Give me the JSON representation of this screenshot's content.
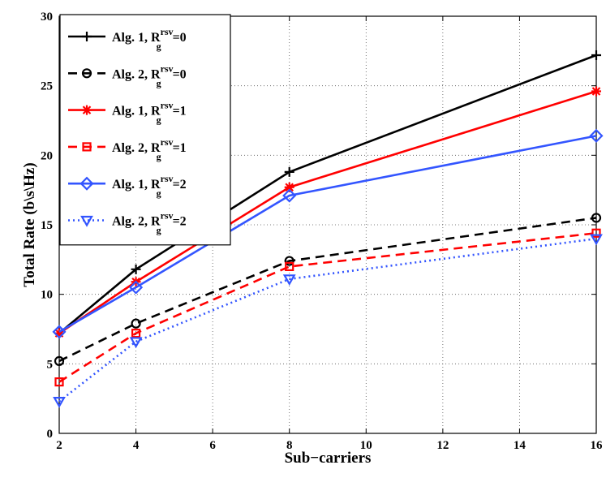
{
  "chart_data": {
    "type": "line",
    "title": "",
    "xlabel": "Sub−carriers",
    "ylabel": "Total Rate (b\\s\\Hz)",
    "xlim": [
      2,
      16
    ],
    "ylim": [
      0,
      30
    ],
    "xticks": [
      2,
      4,
      6,
      8,
      10,
      12,
      14,
      16
    ],
    "yticks": [
      0,
      5,
      10,
      15,
      20,
      25,
      30
    ],
    "xtick_labels": [
      "2",
      "4",
      "6",
      "8",
      "10",
      "12",
      "14",
      "16"
    ],
    "ytick_labels": [
      "0",
      "5",
      "10",
      "15",
      "20",
      "25",
      "30"
    ],
    "grid": true,
    "legend_position": "top-left",
    "x": [
      2,
      4,
      8,
      16
    ],
    "series": [
      {
        "name": "Alg. 1, R_g^rsv=0",
        "alg": "Alg. 1, R",
        "sub": "g",
        "sup": "rsv",
        "val": "=0",
        "color": "#000000",
        "dash": "solid",
        "marker": "plus",
        "values": [
          7.2,
          11.8,
          18.8,
          27.2
        ]
      },
      {
        "name": "Alg. 2, R_g^rsv=0",
        "alg": "Alg. 2, R",
        "sub": "g",
        "sup": "rsv",
        "val": "=0",
        "color": "#000000",
        "dash": "dashed",
        "marker": "circle",
        "values": [
          5.2,
          7.9,
          12.4,
          15.5
        ]
      },
      {
        "name": "Alg. 1, R_g^rsv=1",
        "alg": "Alg. 1, R",
        "sub": "g",
        "sup": "rsv",
        "val": "=1",
        "color": "#ff0000",
        "dash": "solid",
        "marker": "asterisk",
        "values": [
          7.2,
          10.9,
          17.7,
          24.6
        ]
      },
      {
        "name": "Alg. 2, R_g^rsv=1",
        "alg": "Alg. 2, R",
        "sub": "g",
        "sup": "rsv",
        "val": "=1",
        "color": "#ff0000",
        "dash": "dashed",
        "marker": "square",
        "values": [
          3.7,
          7.2,
          12.0,
          14.4
        ]
      },
      {
        "name": "Alg. 1, R_g^rsv=2",
        "alg": "Alg. 1, R",
        "sub": "g",
        "sup": "rsv",
        "val": "=2",
        "color": "#3355ff",
        "dash": "solid",
        "marker": "diamond",
        "values": [
          7.3,
          10.5,
          17.1,
          21.4
        ]
      },
      {
        "name": "Alg. 2, R_g^rsv=2",
        "alg": "Alg. 2, R",
        "sub": "g",
        "sup": "rsv",
        "val": "=2",
        "color": "#3355ff",
        "dash": "dotted",
        "marker": "triangle-down",
        "values": [
          2.3,
          6.6,
          11.1,
          14.0
        ]
      }
    ]
  }
}
